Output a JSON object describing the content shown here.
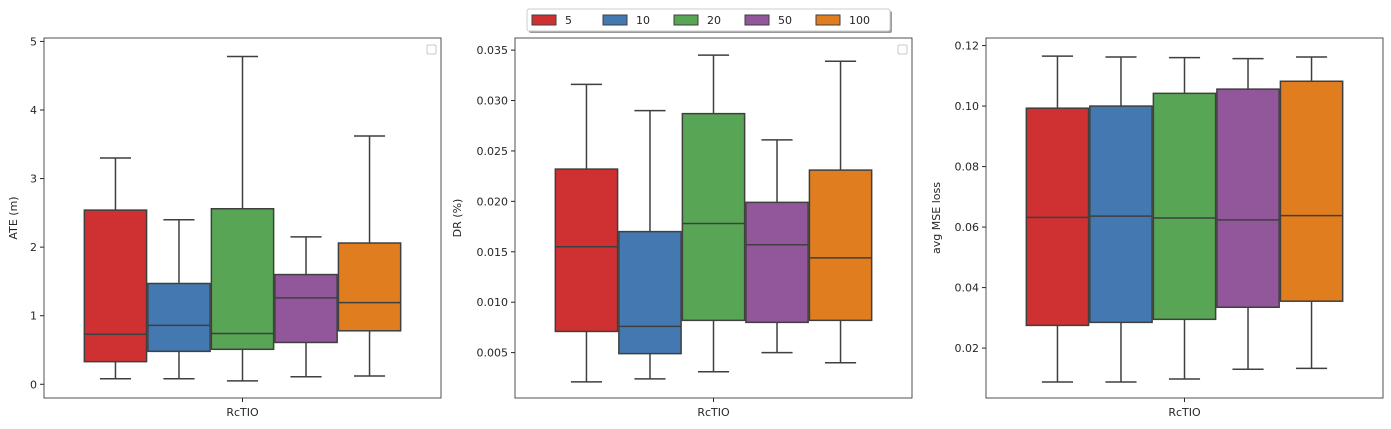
{
  "legend": {
    "placement": "top-center",
    "entries": [
      {
        "label": "5",
        "color": "#cf3133"
      },
      {
        "label": "10",
        "color": "#4379b0"
      },
      {
        "label": "20",
        "color": "#59a556"
      },
      {
        "label": "50",
        "color": "#91579a"
      },
      {
        "label": "100",
        "color": "#e07d1f"
      }
    ]
  },
  "chart_data": [
    {
      "type": "box",
      "xlabel": "RcTIO",
      "ylabel": "ATE (m)",
      "ylim": [
        -0.2,
        5.05
      ],
      "yticks": [
        0,
        1,
        2,
        3,
        4,
        5
      ],
      "tick_format": "int",
      "categories": [
        "RcTIO"
      ],
      "series": [
        {
          "name": "5",
          "whisker_low": 0.08,
          "q1": 0.33,
          "median": 0.73,
          "q3": 2.54,
          "whisker_high": 3.3
        },
        {
          "name": "10",
          "whisker_low": 0.08,
          "q1": 0.48,
          "median": 0.86,
          "q3": 1.47,
          "whisker_high": 2.4
        },
        {
          "name": "20",
          "whisker_low": 0.05,
          "q1": 0.51,
          "median": 0.74,
          "q3": 2.56,
          "whisker_high": 4.78
        },
        {
          "name": "50",
          "whisker_low": 0.11,
          "q1": 0.61,
          "median": 1.26,
          "q3": 1.6,
          "whisker_high": 2.15
        },
        {
          "name": "100",
          "whisker_low": 0.12,
          "q1": 0.78,
          "median": 1.19,
          "q3": 2.06,
          "whisker_high": 3.62
        }
      ]
    },
    {
      "type": "box",
      "xlabel": "RcTIO",
      "ylabel": "DR (%)",
      "ylim": [
        0.0005,
        0.0362
      ],
      "yticks": [
        0.005,
        0.01,
        0.015,
        0.02,
        0.025,
        0.03,
        0.035
      ],
      "tick_format": "3dp",
      "categories": [
        "RcTIO"
      ],
      "series": [
        {
          "name": "5",
          "whisker_low": 0.0021,
          "q1": 0.0071,
          "median": 0.0155,
          "q3": 0.0232,
          "whisker_high": 0.0316
        },
        {
          "name": "10",
          "whisker_low": 0.0024,
          "q1": 0.0049,
          "median": 0.0076,
          "q3": 0.017,
          "whisker_high": 0.029
        },
        {
          "name": "20",
          "whisker_low": 0.0031,
          "q1": 0.0082,
          "median": 0.0178,
          "q3": 0.0287,
          "whisker_high": 0.0345
        },
        {
          "name": "50",
          "whisker_low": 0.005,
          "q1": 0.008,
          "median": 0.0157,
          "q3": 0.0199,
          "whisker_high": 0.0261
        },
        {
          "name": "100",
          "whisker_low": 0.004,
          "q1": 0.0082,
          "median": 0.0144,
          "q3": 0.0231,
          "whisker_high": 0.0339
        }
      ]
    },
    {
      "type": "box",
      "xlabel": "RcTIO",
      "ylabel": "avg MSE loss",
      "ylim": [
        0.0035,
        0.1225
      ],
      "yticks": [
        0.02,
        0.04,
        0.06,
        0.08,
        0.1,
        0.12
      ],
      "tick_format": "2dp",
      "categories": [
        "RcTIO"
      ],
      "series": [
        {
          "name": "5",
          "whisker_low": 0.0088,
          "q1": 0.0275,
          "median": 0.0632,
          "q3": 0.0993,
          "whisker_high": 0.1165
        },
        {
          "name": "10",
          "whisker_low": 0.0088,
          "q1": 0.0285,
          "median": 0.0636,
          "q3": 0.1,
          "whisker_high": 0.1162
        },
        {
          "name": "20",
          "whisker_low": 0.0098,
          "q1": 0.0295,
          "median": 0.063,
          "q3": 0.1042,
          "whisker_high": 0.116
        },
        {
          "name": "50",
          "whisker_low": 0.013,
          "q1": 0.0335,
          "median": 0.0624,
          "q3": 0.1056,
          "whisker_high": 0.1157
        },
        {
          "name": "100",
          "whisker_low": 0.0133,
          "q1": 0.0355,
          "median": 0.0638,
          "q3": 0.1082,
          "whisker_high": 0.1162
        }
      ]
    }
  ]
}
